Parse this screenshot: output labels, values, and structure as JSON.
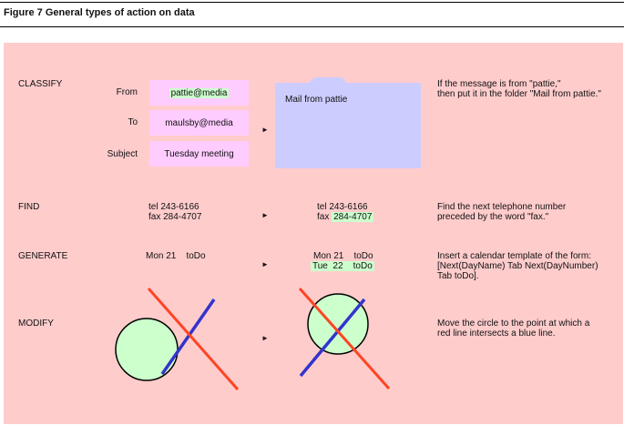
{
  "figure": {
    "title": "Figure 7    General types of action on data"
  },
  "classify": {
    "label": "CLASSIFY",
    "from_label": "From",
    "from_value": "pattie@media",
    "to_label": "To",
    "to_value": "maulsby@media",
    "subject_label": "Subject",
    "subject_value": "Tuesday meeting",
    "folder_name": "Mail from pattie",
    "arrow": "►",
    "desc_line1": "If the message is from \"pattie,\"",
    "desc_line2": "then put it in the folder \"Mail from pattie.\""
  },
  "find": {
    "label": "FIND",
    "before_line1": "tel  243-6166",
    "before_line2": "fax  284-4707",
    "after_line1": "tel  243-6166",
    "after_line2_prefix": "fax",
    "after_line2_highlight": "284-4707",
    "arrow": "►",
    "desc_line1": "Find the next telephone number",
    "desc_line2": "preceded by the word \"fax.\""
  },
  "generate": {
    "label": "GENERATE",
    "before_line1": "Mon 21    toDo",
    "after_line1": "Mon 21    toDo",
    "after_line2": "Tue  22    toDo",
    "arrow": "►",
    "desc_line1": "Insert a calendar template of the form:",
    "desc_line2": "[Next(DayName) Tab Next(DayNumber)",
    "desc_line3": "Tab toDo]."
  },
  "modify": {
    "label": "MODIFY",
    "arrow": "►",
    "desc_line1": "Move the circle to the point at which a",
    "desc_line2": "red line intersects a blue line."
  },
  "colors": {
    "panel": "#ffcccc",
    "field": "#ffccff",
    "folder": "#ccccff",
    "highlight": "#ccffcc",
    "red_line": "#ff4422",
    "blue_line": "#3333cc",
    "circle_fill": "#ccffcc"
  }
}
